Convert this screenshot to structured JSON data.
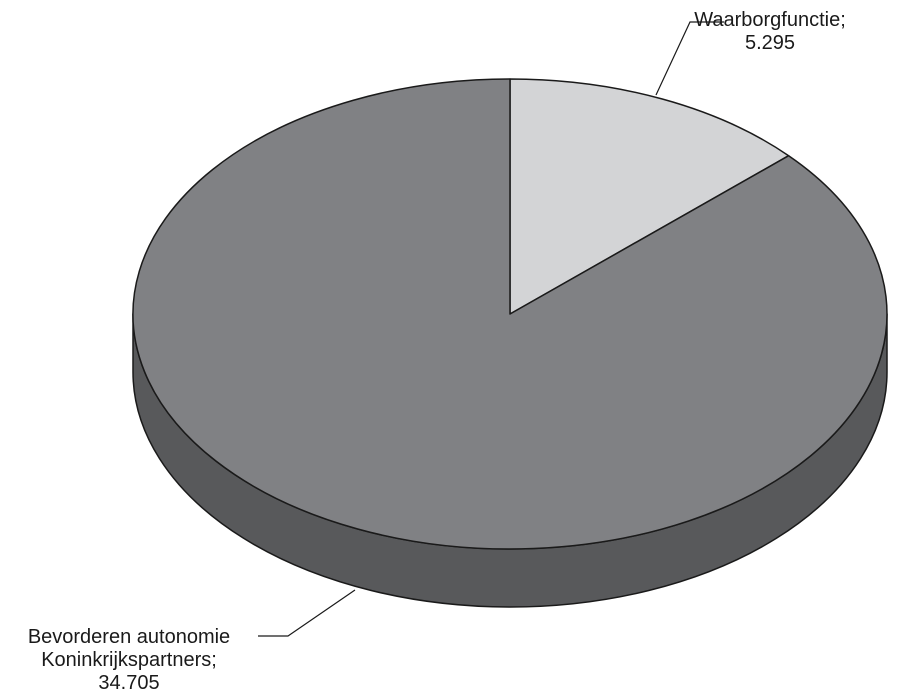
{
  "chart_data": {
    "type": "pie",
    "style": "3d",
    "slices": [
      {
        "name": "Waarborgfunctie",
        "value": 5.295,
        "color": "#d3d4d6",
        "side_color": "#a9aaac",
        "label_line1": "Waarborgfunctie;",
        "label_line2": "5.295"
      },
      {
        "name": "Bevorderen autonomie Koninkrijkspartners",
        "value": 34.705,
        "color": "#808184",
        "side_color": "#58595b",
        "label_line1": "Bevorderen autonomie",
        "label_line2": "Koninkrijkspartners;",
        "label_line3": "34.705"
      }
    ],
    "start_angle_deg": 0,
    "direction": "clockwise",
    "legend": "none"
  }
}
